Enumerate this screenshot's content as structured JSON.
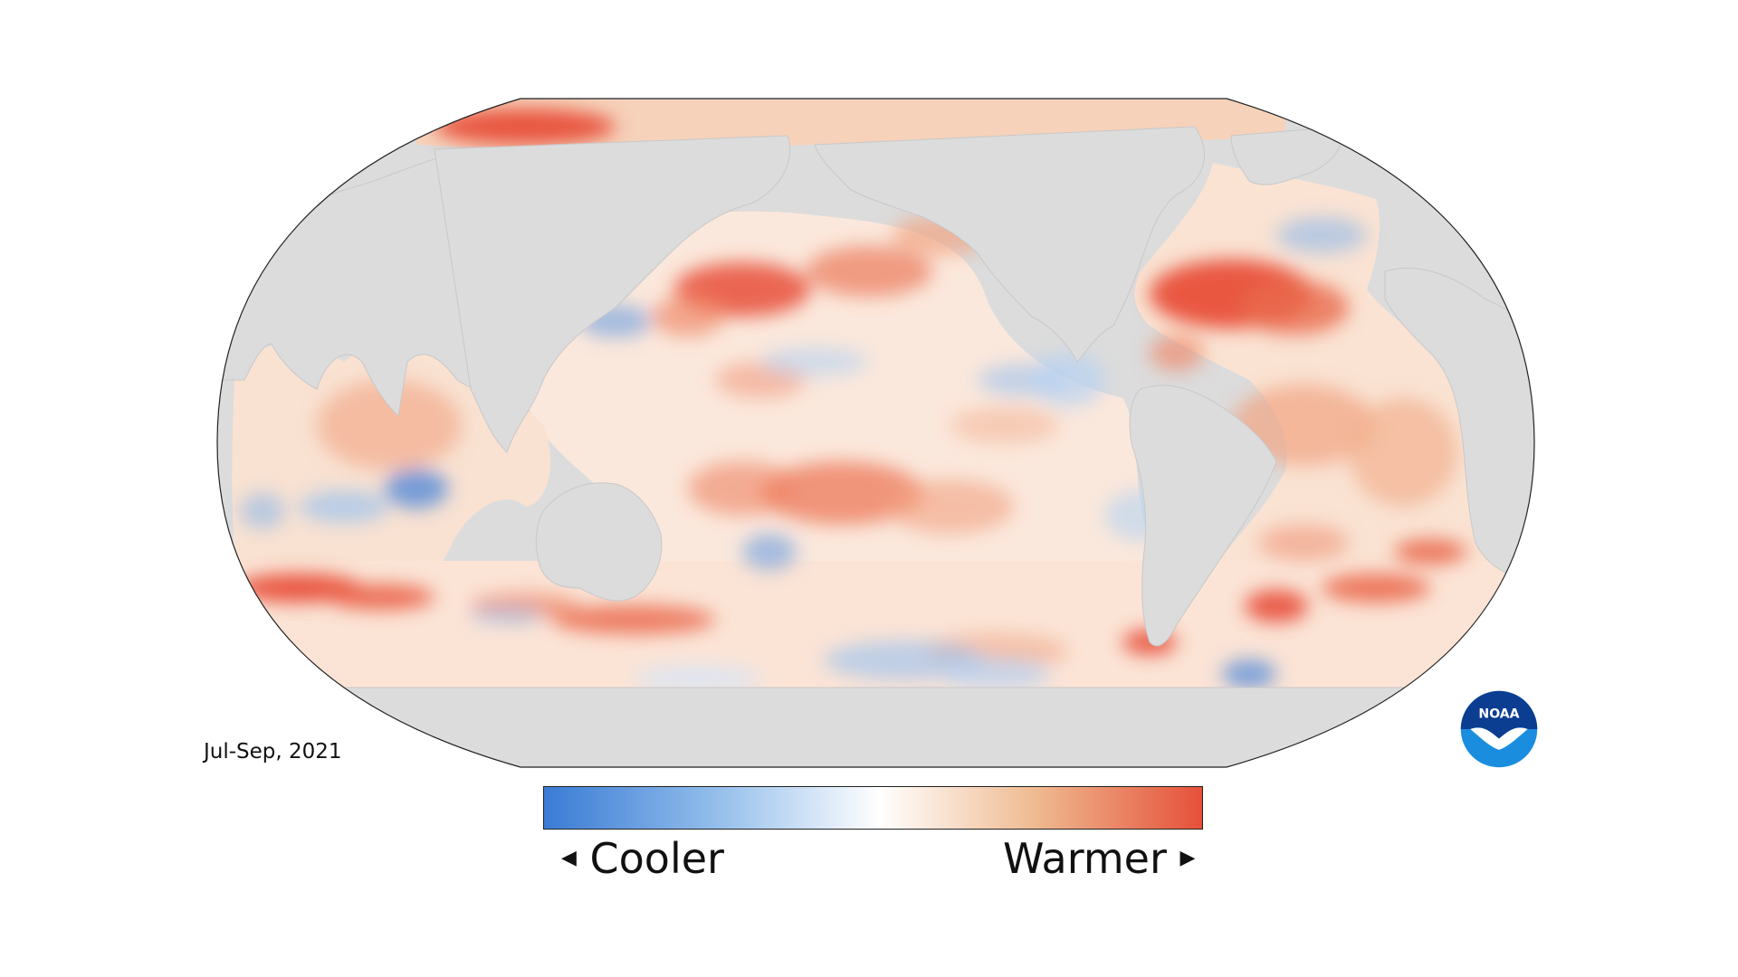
{
  "period": "Jul-Sep, 2021",
  "legend": {
    "low_label": "Cooler",
    "high_label": "Warmer",
    "low_color": "#3a7bd5",
    "mid_color": "#ffffff",
    "high_color": "#e5503a"
  },
  "logo": {
    "text": "NOAA",
    "color": "#0b5ca8",
    "accent_color": "#1a8ddf"
  },
  "map": {
    "projection": "Robinson",
    "land_color": "#dcdcdc",
    "warm_color": "#e8503a",
    "warm_light_color": "#f2b08f",
    "cool_color": "#4a86d8",
    "cool_light_color": "#b6d2f2"
  }
}
